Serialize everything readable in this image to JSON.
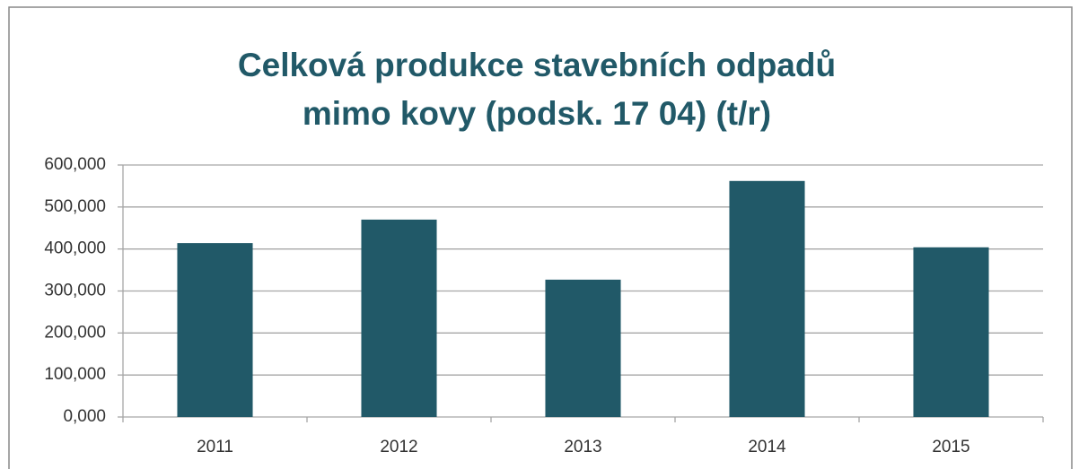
{
  "chart_data": {
    "type": "bar",
    "title": [
      "Celková produkce stavebních odpadů",
      "mimo kovy (podsk. 17 04) (t/r)"
    ],
    "categories": [
      "2011",
      "2012",
      "2013",
      "2014",
      "2015"
    ],
    "values": [
      414000,
      470000,
      327000,
      562000,
      404000
    ],
    "color": "#215968",
    "ylim": [
      0,
      600000
    ],
    "yticks": [
      {
        "value": 0,
        "label": "0,000"
      },
      {
        "value": 100000,
        "label": "100,000"
      },
      {
        "value": 200000,
        "label": "200,000"
      },
      {
        "value": 300000,
        "label": "300,000"
      },
      {
        "value": 400000,
        "label": "400,000"
      },
      {
        "value": 500000,
        "label": "500,000"
      },
      {
        "value": 600000,
        "label": "600,000"
      }
    ],
    "grid": true
  }
}
